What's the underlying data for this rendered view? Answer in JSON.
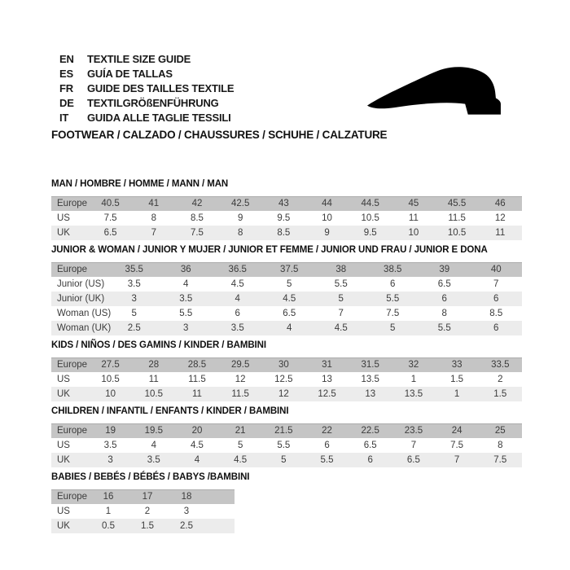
{
  "header": {
    "languages": [
      {
        "code": "EN",
        "text": "TEXTILE SIZE GUIDE"
      },
      {
        "code": "ES",
        "text": "GUÍA DE TALLAS"
      },
      {
        "code": "FR",
        "text": "GUIDE DES TAILLES TEXTILE"
      },
      {
        "code": "DE",
        "text": "TEXTILGRÖßENFÜHRUNG"
      },
      {
        "code": "IT",
        "text": "GUIDA ALLE TAGLIE TESSILI"
      }
    ],
    "category_line": "FOOTWEAR / CALZADO / CHAUSSURES / SCHUHE / CALZATURE",
    "shoe_icon": "shoe-silhouette"
  },
  "colors": {
    "header_row_bg": "#c5c5c5",
    "alt_row_bg": "#ececec",
    "row_bg": "#ffffff",
    "cell_text": "#3c3c3c",
    "title_text": "#101010",
    "icon": "#000000"
  },
  "chart_data": {
    "type": "table"
  },
  "tables": [
    {
      "title": "MAN / HOMBRE / HOMME / MANN / MAN",
      "rows": [
        {
          "label": "Europe",
          "values": [
            "40.5",
            "41",
            "42",
            "42.5",
            "43",
            "44",
            "44.5",
            "45",
            "45.5",
            "46"
          ]
        },
        {
          "label": "US",
          "values": [
            "7.5",
            "8",
            "8.5",
            "9",
            "9.5",
            "10",
            "10.5",
            "11",
            "11.5",
            "12"
          ]
        },
        {
          "label": "UK",
          "values": [
            "6.5",
            "7",
            "7.5",
            "8",
            "8.5",
            "9",
            "9.5",
            "10",
            "10.5",
            "11"
          ]
        }
      ]
    },
    {
      "title": "JUNIOR & WOMAN / JUNIOR Y MUJER / JUNIOR ET FEMME / JUNIOR UND FRAU / JUNIOR E DONA",
      "rows": [
        {
          "label": "Europe",
          "values": [
            "35.5",
            "36",
            "36.5",
            "37.5",
            "38",
            "38.5",
            "39",
            "40"
          ]
        },
        {
          "label": "Junior (US)",
          "values": [
            "3.5",
            "4",
            "4.5",
            "5",
            "5.5",
            "6",
            "6.5",
            "7"
          ]
        },
        {
          "label": "Junior (UK)",
          "values": [
            "3",
            "3.5",
            "4",
            "4.5",
            "5",
            "5.5",
            "6",
            "6"
          ]
        },
        {
          "label": "Woman (US)",
          "values": [
            "5",
            "5.5",
            "6",
            "6.5",
            "7",
            "7.5",
            "8",
            "8.5"
          ]
        },
        {
          "label": "Woman (UK)",
          "values": [
            "2.5",
            "3",
            "3.5",
            "4",
            "4.5",
            "5",
            "5.5",
            "6"
          ]
        }
      ]
    },
    {
      "title": "KIDS / NIÑOS / DES GAMINS / KINDER / BAMBINI",
      "rows": [
        {
          "label": "Europe",
          "values": [
            "27.5",
            "28",
            "28.5",
            "29.5",
            "30",
            "31",
            "31.5",
            "32",
            "33",
            "33.5"
          ]
        },
        {
          "label": "US",
          "values": [
            "10.5",
            "11",
            "11.5",
            "12",
            "12.5",
            "13",
            "13.5",
            "1",
            "1.5",
            "2"
          ]
        },
        {
          "label": "UK",
          "values": [
            "10",
            "10.5",
            "11",
            "11.5",
            "12",
            "12.5",
            "13",
            "13.5",
            "1",
            "1.5"
          ]
        }
      ]
    },
    {
      "title": "CHILDREN / INFANTIL / ENFANTS / KINDER / BAMBINI",
      "rows": [
        {
          "label": "Europe",
          "values": [
            "19",
            "19.5",
            "20",
            "21",
            "21.5",
            "22",
            "22.5",
            "23.5",
            "24",
            "25"
          ]
        },
        {
          "label": "US",
          "values": [
            "3.5",
            "4",
            "4.5",
            "5",
            "5.5",
            "6",
            "6.5",
            "7",
            "7.5",
            "8"
          ]
        },
        {
          "label": "UK",
          "values": [
            "3",
            "3.5",
            "4",
            "4.5",
            "5",
            "5.5",
            "6",
            "6.5",
            "7",
            "7.5"
          ]
        }
      ]
    },
    {
      "title": "BABIES  / BEBÉS / BÉBÉS / BABYS /BAMBINI",
      "rows": [
        {
          "label": "Europe",
          "values": [
            "16",
            "17",
            "18"
          ]
        },
        {
          "label": "US",
          "values": [
            "1",
            "2",
            "3"
          ]
        },
        {
          "label": "UK",
          "values": [
            "0.5",
            "1.5",
            "2.5"
          ]
        }
      ]
    }
  ]
}
